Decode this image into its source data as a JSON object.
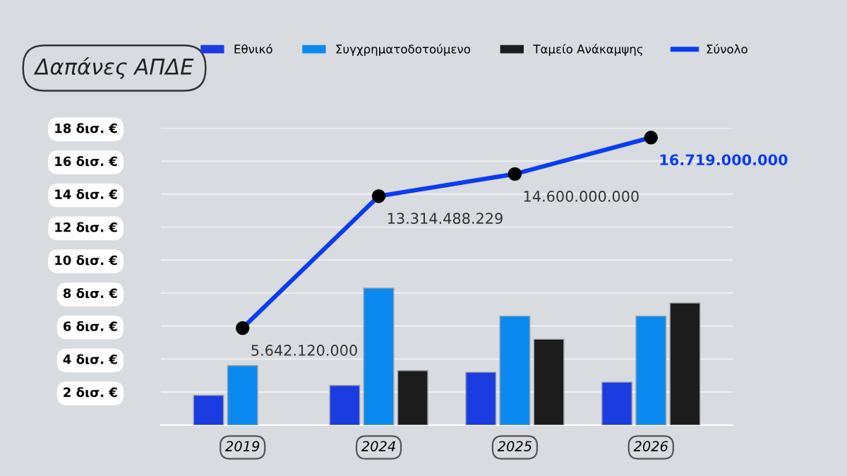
{
  "chart_data": {
    "type": "bar",
    "title": "Δαπάνες ΑΠΔΕ",
    "categories": [
      "2019",
      "2024",
      "2025",
      "2026"
    ],
    "series": [
      {
        "name": "Εθνικό",
        "color": "#1a3ce0",
        "values": [
          1.8,
          2.4,
          3.2,
          2.6
        ]
      },
      {
        "name": "Συγχρηματοδοτούμενο",
        "color": "#0a8af0",
        "values": [
          3.6,
          8.3,
          6.6,
          6.6
        ]
      },
      {
        "name": "Ταμείο Ανάκαμψης",
        "color": "#1c1c1c",
        "values": [
          null,
          3.3,
          5.2,
          7.4
        ]
      },
      {
        "name": "Σύνολο",
        "type": "line",
        "color": "#0a3cf0",
        "marker": "circle",
        "axis": "y2",
        "values": [
          5642120000,
          13314488229,
          14600000000,
          16719000000
        ],
        "value_labels": [
          "5.642.120.000",
          "13.314.488.229",
          "14.600.000.000",
          "16.719.000.000"
        ]
      }
    ],
    "ylim": [
      0,
      18
    ],
    "yticks": [
      {
        "value": 2,
        "label": "2 δισ. €"
      },
      {
        "value": 4,
        "label": "4 δισ. €"
      },
      {
        "value": 6,
        "label": "6 δισ. €"
      },
      {
        "value": 8,
        "label": "8 δισ. €"
      },
      {
        "value": 10,
        "label": "10 δισ. €"
      },
      {
        "value": 12,
        "label": "12 δισ. €"
      },
      {
        "value": 14,
        "label": "14 δισ. €"
      },
      {
        "value": 16,
        "label": "16 δισ. €"
      },
      {
        "value": 18,
        "label": "18 δισ. €"
      }
    ],
    "grid": "y",
    "legend": "top"
  }
}
